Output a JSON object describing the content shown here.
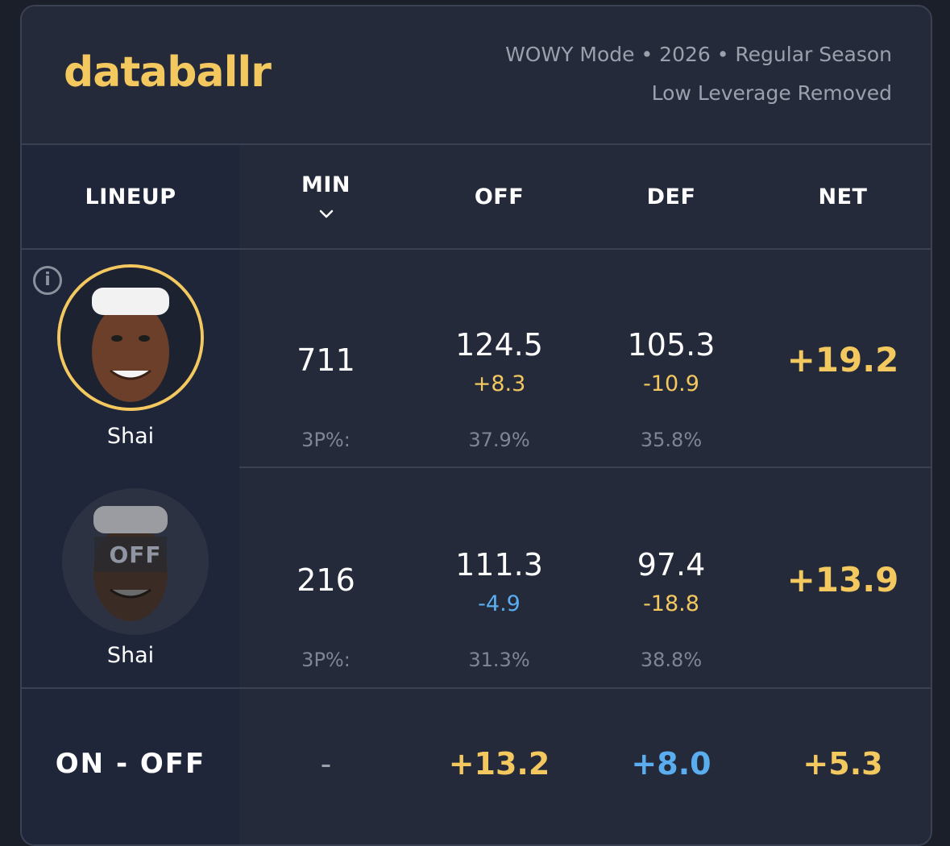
{
  "brand": {
    "logo": "databallr"
  },
  "meta": {
    "line1": "WOWY Mode • 2026 • Regular Season",
    "line2": "Low Leverage Removed"
  },
  "columns": {
    "lineup": "LINEUP",
    "min": "MIN",
    "off": "OFF",
    "def": "DEF",
    "net": "NET"
  },
  "rows": [
    {
      "player": "Shai",
      "state": "on",
      "min": "711",
      "off": "124.5",
      "off_delta": "+8.3",
      "def": "105.3",
      "def_delta": "-10.9",
      "net": "+19.2",
      "threep_label": "3P%:",
      "off_3p": "37.9%",
      "def_3p": "35.8%"
    },
    {
      "player": "Shai",
      "state": "off",
      "state_label": "OFF",
      "min": "216",
      "off": "111.3",
      "off_delta": "-4.9",
      "def": "97.4",
      "def_delta": "-18.8",
      "net": "+13.9",
      "threep_label": "3P%:",
      "off_3p": "31.3%",
      "def_3p": "38.8%"
    }
  ],
  "on_off": {
    "label": "ON - OFF",
    "min": "-",
    "off": "+13.2",
    "def": "+8.0",
    "net": "+5.3"
  },
  "icons": {
    "info": "info-icon",
    "sort": "chevron-down-icon"
  },
  "colors": {
    "accent": "#f3c85f",
    "negative": "#5aaef0",
    "background": "#242a39"
  }
}
